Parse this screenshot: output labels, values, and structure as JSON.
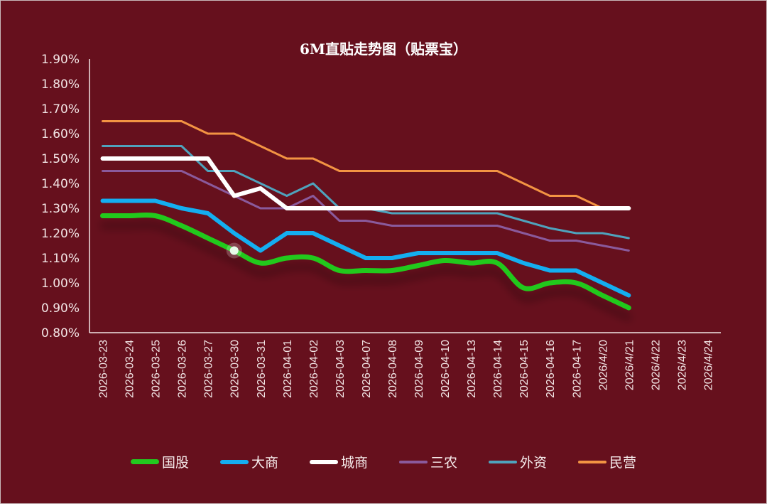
{
  "chart_data": {
    "type": "line",
    "title": "6M直贴走势图（贴票宝）",
    "xlabel": "",
    "ylabel": "",
    "ylim": [
      0.8,
      1.9
    ],
    "y_ticks": [
      "1.90%",
      "1.80%",
      "1.70%",
      "1.60%",
      "1.50%",
      "1.40%",
      "1.30%",
      "1.20%",
      "1.10%",
      "1.00%",
      "0.90%",
      "0.80%"
    ],
    "grid": false,
    "legend_position": "bottom",
    "categories": [
      "2026-03-23",
      "2026-03-24",
      "2026-03-25",
      "2026-03-26",
      "2026-03-27",
      "2026-03-30",
      "2026-03-31",
      "2026-04-01",
      "2026-04-02",
      "2026-04-03",
      "2026-04-07",
      "2026-04-08",
      "2026-04-09",
      "2026-04-10",
      "2026-04-13",
      "2026-04-14",
      "2026-04-15",
      "2026-04-16",
      "2026-04-17",
      "2026/4/20",
      "2026/4/21",
      "2026/4/22",
      "2026/4/23",
      "2026/4/24"
    ],
    "series": [
      {
        "name": "国股",
        "color": "#22c91f",
        "width": 7,
        "smooth": true,
        "values": [
          1.27,
          1.27,
          1.27,
          1.23,
          1.18,
          1.13,
          1.08,
          1.1,
          1.1,
          1.05,
          1.05,
          1.05,
          1.07,
          1.09,
          1.08,
          1.08,
          0.98,
          1.0,
          1.0,
          0.95,
          0.9,
          null,
          null,
          null
        ]
      },
      {
        "name": "大商",
        "color": "#14aef0",
        "width": 6,
        "smooth": false,
        "values": [
          1.33,
          1.33,
          1.33,
          1.3,
          1.28,
          1.2,
          1.13,
          1.2,
          1.2,
          1.15,
          1.1,
          1.1,
          1.12,
          1.12,
          1.12,
          1.12,
          1.08,
          1.05,
          1.05,
          1.0,
          0.95,
          null,
          null,
          null
        ]
      },
      {
        "name": "城商",
        "color": "#ffffff",
        "width": 6,
        "smooth": false,
        "values": [
          1.5,
          1.5,
          1.5,
          1.5,
          1.5,
          1.35,
          1.38,
          1.3,
          1.3,
          1.3,
          1.3,
          1.3,
          1.3,
          1.3,
          1.3,
          1.3,
          1.3,
          1.3,
          1.3,
          1.3,
          1.3,
          null,
          null,
          null
        ]
      },
      {
        "name": "三农",
        "color": "#8a5a9c",
        "width": 3,
        "smooth": false,
        "values": [
          1.45,
          1.45,
          1.45,
          1.45,
          1.4,
          1.35,
          1.3,
          1.3,
          1.35,
          1.25,
          1.25,
          1.23,
          1.23,
          1.23,
          1.23,
          1.23,
          1.2,
          1.17,
          1.17,
          1.15,
          1.13,
          null,
          null,
          null
        ]
      },
      {
        "name": "外资",
        "color": "#4fa3bd",
        "width": 3,
        "smooth": false,
        "values": [
          1.55,
          1.55,
          1.55,
          1.55,
          1.45,
          1.45,
          1.4,
          1.35,
          1.4,
          1.3,
          1.3,
          1.28,
          1.28,
          1.28,
          1.28,
          1.28,
          1.25,
          1.22,
          1.2,
          1.2,
          1.18,
          null,
          null,
          null
        ]
      },
      {
        "name": "民营",
        "color": "#f39443",
        "width": 3,
        "smooth": false,
        "values": [
          1.65,
          1.65,
          1.65,
          1.65,
          1.6,
          1.6,
          1.55,
          1.5,
          1.5,
          1.45,
          1.45,
          1.45,
          1.45,
          1.45,
          1.45,
          1.45,
          1.4,
          1.35,
          1.35,
          1.3,
          1.3,
          null,
          null,
          null
        ]
      }
    ],
    "annotations": [
      {
        "type": "highlight-point",
        "series": "国股",
        "category": "2026-03-30",
        "value": 1.13
      }
    ]
  },
  "colors": {
    "background": "#66101d",
    "axis": "#f1e4e4",
    "text": "#f3e6e6"
  }
}
